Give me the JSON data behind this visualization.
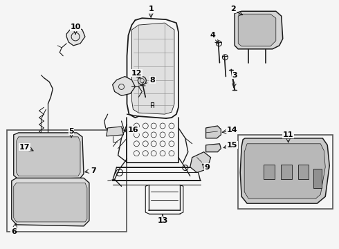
{
  "background_color": "#f5f5f5",
  "line_color": "#1a1a1a",
  "fig_width": 4.9,
  "fig_height": 3.6,
  "dpi": 100
}
